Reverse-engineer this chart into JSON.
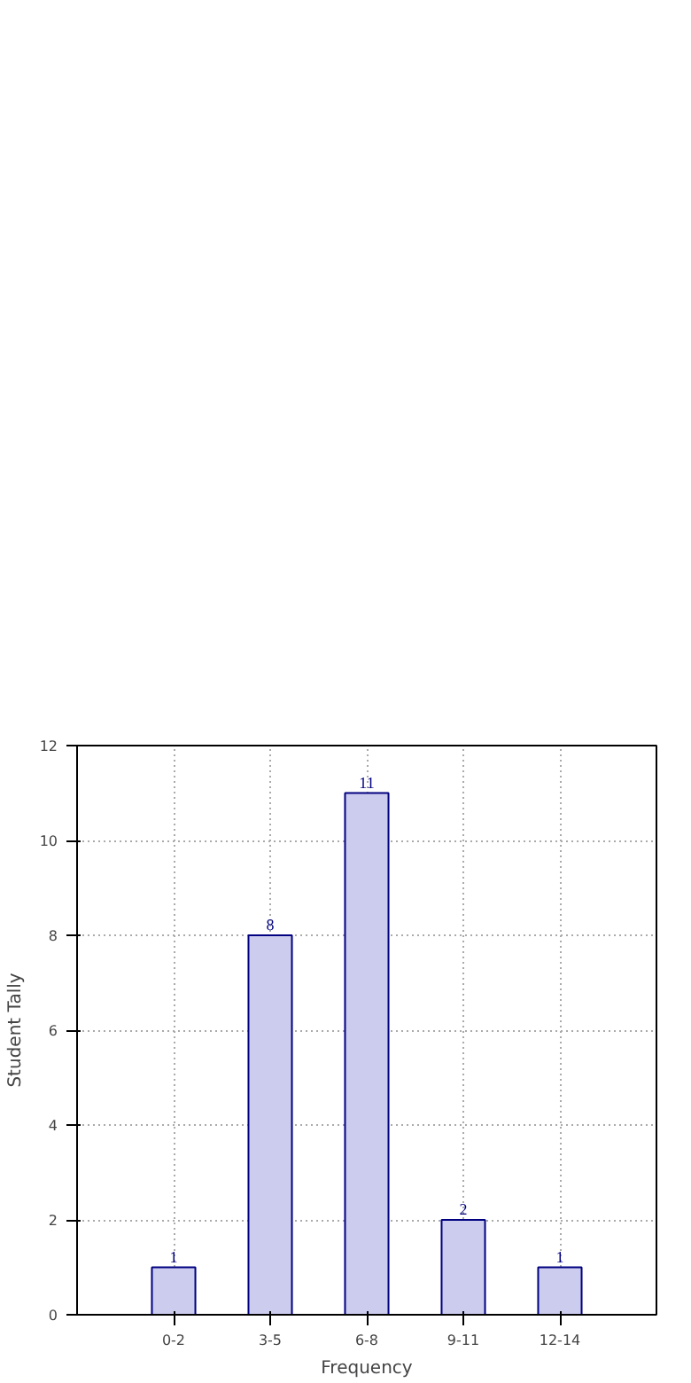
{
  "chart_data": {
    "type": "bar",
    "xlabel": "Frequency",
    "ylabel": "Student Tally",
    "categories": [
      "0-2",
      "3-5",
      "6-8",
      "9-11",
      "12-14"
    ],
    "values": [
      1,
      8,
      11,
      2,
      1
    ],
    "color": "#ccccee",
    "ylim": [
      0,
      12
    ],
    "yticks": [
      0,
      2,
      4,
      6,
      8,
      10,
      12
    ],
    "grid": true,
    "data_labels": true
  }
}
